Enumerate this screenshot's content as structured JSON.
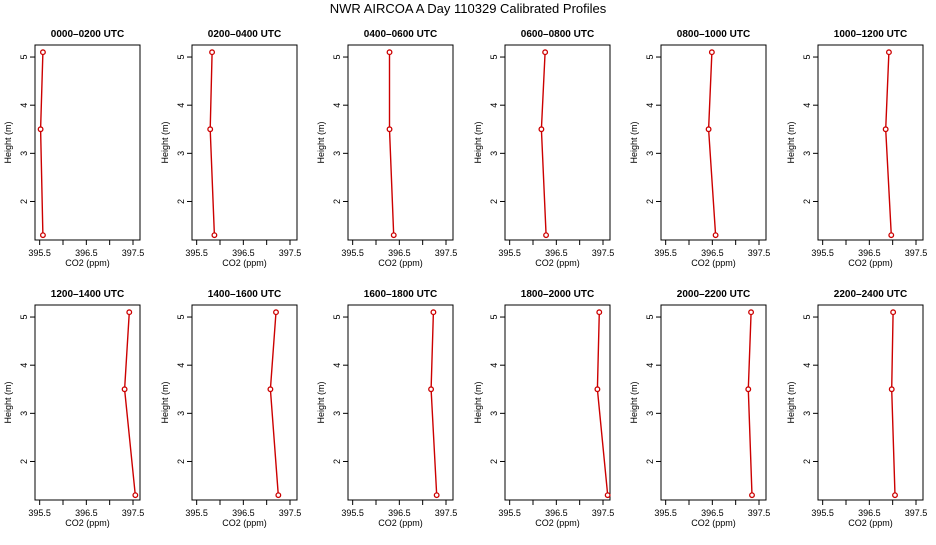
{
  "figure": {
    "title": "NWR AIRCOA A  Day 110329  Calibrated Profiles"
  },
  "chart_data": [
    {
      "type": "line",
      "title": "0000–0200 UTC",
      "xlabel": "CO2 (ppm)",
      "ylabel": "Height (m)",
      "xlim": [
        395.4,
        397.65
      ],
      "ylim": [
        1.2,
        5.25
      ],
      "xticks": [
        "395.5",
        "396.5",
        "397.5"
      ],
      "yticks": [
        "2",
        "3",
        "4",
        "5"
      ],
      "grid": false,
      "series": [
        {
          "x": [
            395.57,
            395.52,
            395.57
          ],
          "y": [
            1.3,
            3.5,
            5.1
          ],
          "color": "#cc0000"
        }
      ]
    },
    {
      "type": "line",
      "title": "0200–0400 UTC",
      "xlabel": "CO2 (ppm)",
      "ylabel": "Height (m)",
      "xlim": [
        395.4,
        397.65
      ],
      "ylim": [
        1.2,
        5.25
      ],
      "xticks": [
        "395.5",
        "396.5",
        "397.5"
      ],
      "yticks": [
        "2",
        "3",
        "4",
        "5"
      ],
      "grid": false,
      "series": [
        {
          "x": [
            395.88,
            395.79,
            395.83
          ],
          "y": [
            1.3,
            3.5,
            5.1
          ],
          "color": "#cc0000"
        }
      ]
    },
    {
      "type": "line",
      "title": "0400–0600 UTC",
      "xlabel": "CO2 (ppm)",
      "ylabel": "Height (m)",
      "xlim": [
        395.4,
        397.65
      ],
      "ylim": [
        1.2,
        5.25
      ],
      "xticks": [
        "395.5",
        "396.5",
        "397.5"
      ],
      "yticks": [
        "2",
        "3",
        "4",
        "5"
      ],
      "grid": false,
      "series": [
        {
          "x": [
            396.38,
            396.29,
            396.29
          ],
          "y": [
            1.3,
            3.5,
            5.1
          ],
          "color": "#cc0000"
        }
      ]
    },
    {
      "type": "line",
      "title": "0600–0800 UTC",
      "xlabel": "CO2 (ppm)",
      "ylabel": "Height (m)",
      "xlim": [
        395.4,
        397.65
      ],
      "ylim": [
        1.2,
        5.25
      ],
      "xticks": [
        "395.5",
        "396.5",
        "397.5"
      ],
      "yticks": [
        "2",
        "3",
        "4",
        "5"
      ],
      "grid": false,
      "series": [
        {
          "x": [
            396.28,
            396.18,
            396.26
          ],
          "y": [
            1.3,
            3.5,
            5.1
          ],
          "color": "#cc0000"
        }
      ]
    },
    {
      "type": "line",
      "title": "0800–1000 UTC",
      "xlabel": "CO2 (ppm)",
      "ylabel": "Height (m)",
      "xlim": [
        395.4,
        397.65
      ],
      "ylim": [
        1.2,
        5.25
      ],
      "xticks": [
        "395.5",
        "396.5",
        "397.5"
      ],
      "yticks": [
        "2",
        "3",
        "4",
        "5"
      ],
      "grid": false,
      "series": [
        {
          "x": [
            396.57,
            396.42,
            396.49
          ],
          "y": [
            1.3,
            3.5,
            5.1
          ],
          "color": "#cc0000"
        }
      ]
    },
    {
      "type": "line",
      "title": "1000–1200 UTC",
      "xlabel": "CO2 (ppm)",
      "ylabel": "Height (m)",
      "xlim": [
        395.4,
        397.65
      ],
      "ylim": [
        1.2,
        5.25
      ],
      "xticks": [
        "395.5",
        "396.5",
        "397.5"
      ],
      "yticks": [
        "2",
        "3",
        "4",
        "5"
      ],
      "grid": false,
      "series": [
        {
          "x": [
            396.97,
            396.85,
            396.92
          ],
          "y": [
            1.3,
            3.5,
            5.1
          ],
          "color": "#cc0000"
        }
      ]
    },
    {
      "type": "line",
      "title": "1200–1400 UTC",
      "xlabel": "CO2 (ppm)",
      "ylabel": "Height (m)",
      "xlim": [
        395.4,
        397.65
      ],
      "ylim": [
        1.2,
        5.25
      ],
      "xticks": [
        "395.5",
        "396.5",
        "397.5"
      ],
      "yticks": [
        "2",
        "3",
        "4",
        "5"
      ],
      "grid": false,
      "series": [
        {
          "x": [
            397.55,
            397.32,
            397.42
          ],
          "y": [
            1.3,
            3.5,
            5.1
          ],
          "color": "#cc0000"
        }
      ]
    },
    {
      "type": "line",
      "title": "1400–1600 UTC",
      "xlabel": "CO2 (ppm)",
      "ylabel": "Height (m)",
      "xlim": [
        395.4,
        397.65
      ],
      "ylim": [
        1.2,
        5.25
      ],
      "xticks": [
        "395.5",
        "396.5",
        "397.5"
      ],
      "yticks": [
        "2",
        "3",
        "4",
        "5"
      ],
      "grid": false,
      "series": [
        {
          "x": [
            397.25,
            397.08,
            397.2
          ],
          "y": [
            1.3,
            3.5,
            5.1
          ],
          "color": "#cc0000"
        }
      ]
    },
    {
      "type": "line",
      "title": "1600–1800 UTC",
      "xlabel": "CO2 (ppm)",
      "ylabel": "Height (m)",
      "xlim": [
        395.4,
        397.65
      ],
      "ylim": [
        1.2,
        5.25
      ],
      "xticks": [
        "395.5",
        "396.5",
        "397.5"
      ],
      "yticks": [
        "2",
        "3",
        "4",
        "5"
      ],
      "grid": false,
      "series": [
        {
          "x": [
            397.3,
            397.18,
            397.23
          ],
          "y": [
            1.3,
            3.5,
            5.1
          ],
          "color": "#cc0000"
        }
      ]
    },
    {
      "type": "line",
      "title": "1800–2000 UTC",
      "xlabel": "CO2 (ppm)",
      "ylabel": "Height (m)",
      "xlim": [
        395.4,
        397.65
      ],
      "ylim": [
        1.2,
        5.25
      ],
      "xticks": [
        "395.5",
        "396.5",
        "397.5"
      ],
      "yticks": [
        "2",
        "3",
        "4",
        "5"
      ],
      "grid": false,
      "series": [
        {
          "x": [
            397.6,
            397.38,
            397.42
          ],
          "y": [
            1.3,
            3.5,
            5.1
          ],
          "color": "#cc0000"
        }
      ]
    },
    {
      "type": "line",
      "title": "2000–2200 UTC",
      "xlabel": "CO2 (ppm)",
      "ylabel": "Height (m)",
      "xlim": [
        395.4,
        397.65
      ],
      "ylim": [
        1.2,
        5.25
      ],
      "xticks": [
        "395.5",
        "396.5",
        "397.5"
      ],
      "yticks": [
        "2",
        "3",
        "4",
        "5"
      ],
      "grid": false,
      "series": [
        {
          "x": [
            397.35,
            397.27,
            397.33
          ],
          "y": [
            1.3,
            3.5,
            5.1
          ],
          "color": "#cc0000"
        }
      ]
    },
    {
      "type": "line",
      "title": "2200–2400 UTC",
      "xlabel": "CO2 (ppm)",
      "ylabel": "Height (m)",
      "xlim": [
        395.4,
        397.65
      ],
      "ylim": [
        1.2,
        5.25
      ],
      "xticks": [
        "395.5",
        "396.5",
        "397.5"
      ],
      "yticks": [
        "2",
        "3",
        "4",
        "5"
      ],
      "grid": false,
      "series": [
        {
          "x": [
            397.05,
            396.98,
            397.01
          ],
          "y": [
            1.3,
            3.5,
            5.1
          ],
          "color": "#cc0000"
        }
      ]
    }
  ]
}
